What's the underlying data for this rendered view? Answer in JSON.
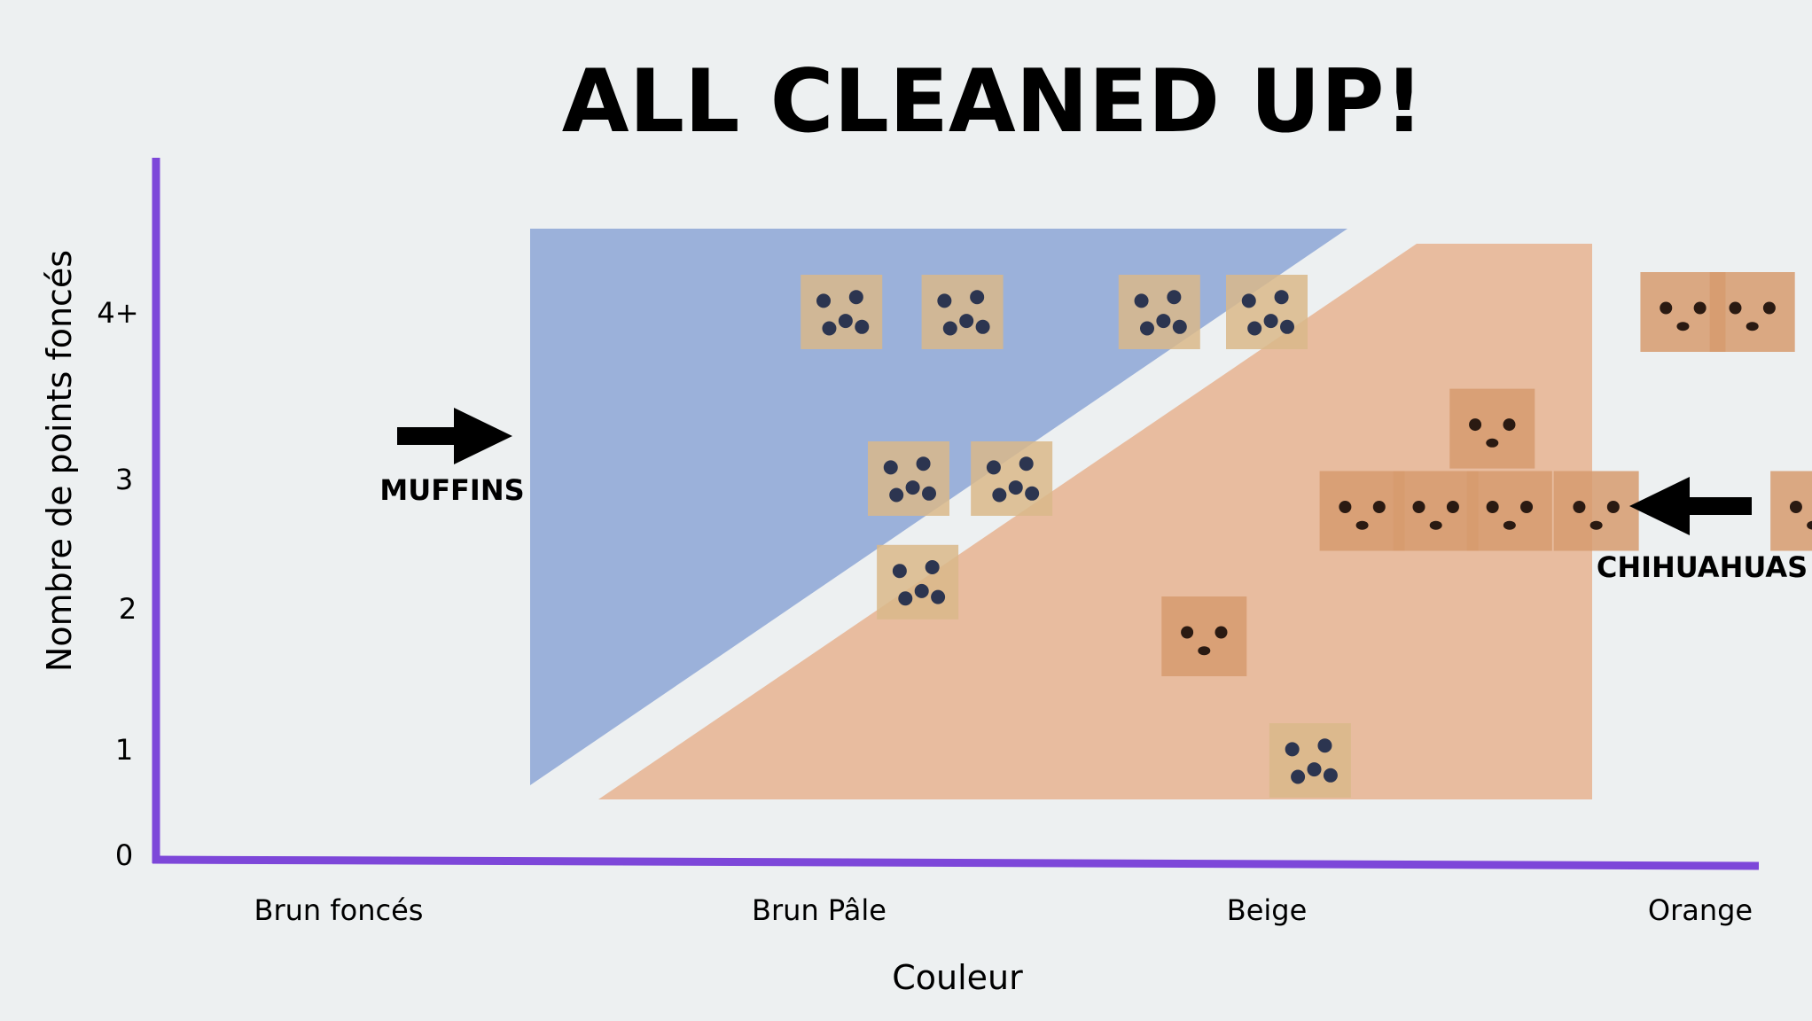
{
  "chart_data": {
    "type": "scatter",
    "title": "ALL CLEANED UP!",
    "xlabel": "Couleur",
    "ylabel": "Nombre de points foncés",
    "x_categories": [
      "Brun foncés",
      "Brun Pâle",
      "Beige",
      "Orange"
    ],
    "y_ticks": [
      "0",
      "1",
      "2",
      "3",
      "4+"
    ],
    "regions": [
      {
        "label": "MUFFINS",
        "color": "#9bb1da",
        "arrow": "right"
      },
      {
        "label": "CHIHUAHUAS",
        "color": "#e8bc9f",
        "arrow": "left"
      }
    ],
    "points": [
      {
        "kind": "muffin",
        "x": 1.05,
        "y": 4.0
      },
      {
        "kind": "muffin",
        "x": 1.32,
        "y": 4.0
      },
      {
        "kind": "muffin",
        "x": 1.76,
        "y": 4.0
      },
      {
        "kind": "muffin",
        "x": 2.0,
        "y": 4.0
      },
      {
        "kind": "muffin",
        "x": 1.2,
        "y": 3.0
      },
      {
        "kind": "muffin",
        "x": 1.43,
        "y": 3.0
      },
      {
        "kind": "muffin",
        "x": 1.22,
        "y": 2.2
      },
      {
        "kind": "chihuahua",
        "x": 2.96,
        "y": 4.0
      },
      {
        "kind": "chihuahua",
        "x": 3.12,
        "y": 4.0
      },
      {
        "kind": "chihuahua",
        "x": 2.52,
        "y": 3.3
      },
      {
        "kind": "chihuahua",
        "x": 2.22,
        "y": 2.75
      },
      {
        "kind": "chihuahua",
        "x": 2.39,
        "y": 2.75
      },
      {
        "kind": "chihuahua",
        "x": 2.56,
        "y": 2.75
      },
      {
        "kind": "chihuahua",
        "x": 2.76,
        "y": 2.75
      },
      {
        "kind": "chihuahua",
        "x": 3.26,
        "y": 2.75
      },
      {
        "kind": "chihuahua",
        "x": 1.86,
        "y": 1.8
      },
      {
        "kind": "muffin",
        "x": 2.1,
        "y": 0.9
      }
    ],
    "axis_color": "#7d47d9",
    "colors": {
      "muffin": "#d9b98a",
      "chihuahua": "#d69b6e"
    }
  }
}
